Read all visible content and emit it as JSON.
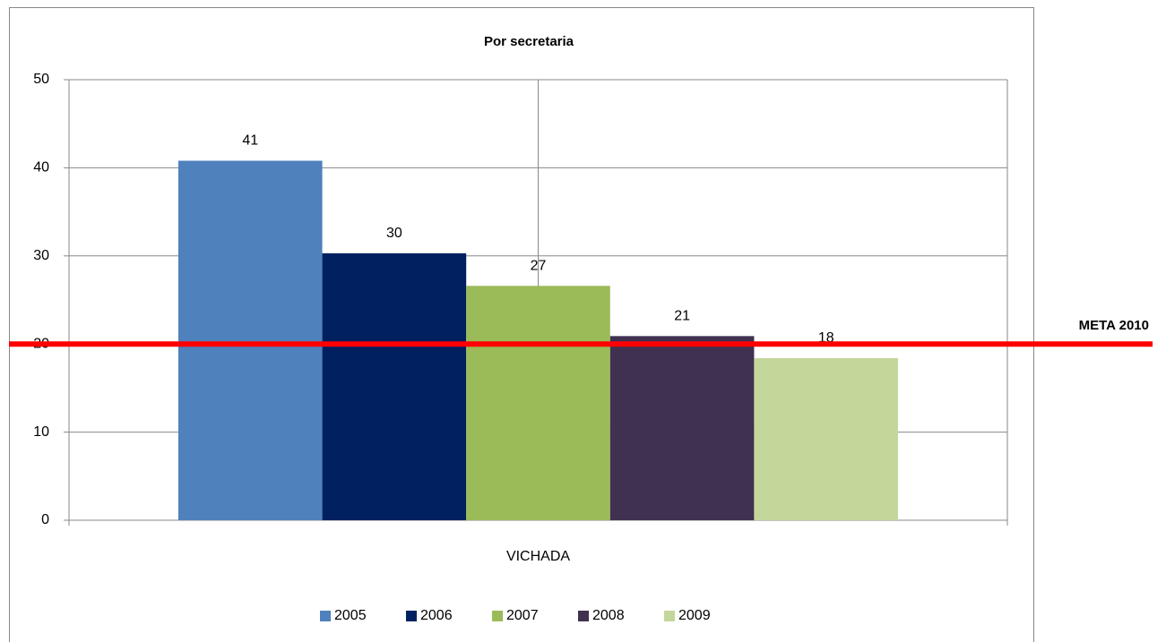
{
  "chart_data": {
    "type": "bar",
    "title": "Por secretaria",
    "categories": [
      "VICHADA"
    ],
    "series": [
      {
        "name": "2005",
        "color": "#4f81bd",
        "values": [
          40.8
        ],
        "value_labels": [
          "41"
        ]
      },
      {
        "name": "2006",
        "color": "#002060",
        "values": [
          30.3
        ],
        "value_labels": [
          "30"
        ]
      },
      {
        "name": "2007",
        "color": "#9bbb59",
        "values": [
          26.6
        ],
        "value_labels": [
          "27"
        ]
      },
      {
        "name": "2008",
        "color": "#403151",
        "values": [
          20.9
        ],
        "value_labels": [
          "21"
        ]
      },
      {
        "name": "2009",
        "color": "#c4d79b",
        "values": [
          18.4
        ],
        "value_labels": [
          "18"
        ]
      }
    ],
    "ylim": [
      0,
      50
    ],
    "yticks": [
      0,
      10,
      20,
      30,
      40,
      50
    ],
    "grid": true,
    "legend": "bottom",
    "target": {
      "value": 20,
      "label": "META 2010",
      "color": "#ff0000"
    }
  }
}
